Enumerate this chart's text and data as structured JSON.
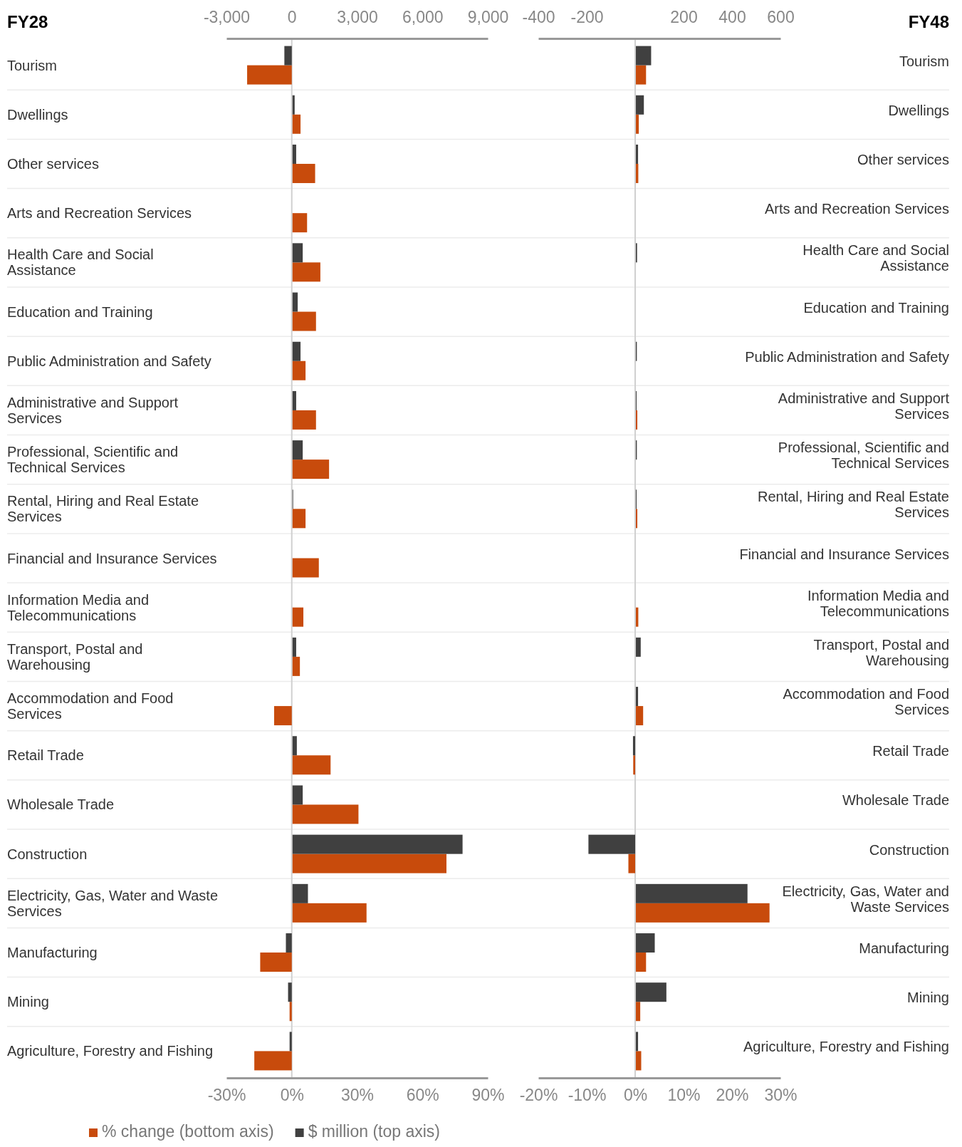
{
  "chart_data": [
    {
      "type": "bar",
      "orientation": "horizontal",
      "title": "FY28",
      "legend": "bottom",
      "categories": [
        "Tourism",
        "Dwellings",
        "Other services",
        "Arts and Recreation Services",
        "Health Care and Social Assistance",
        "Education and Training",
        "Public Administration and Safety",
        "Administrative and Support Services",
        "Professional, Scientific and Technical Services",
        "Rental, Hiring and Real Estate Services",
        "Financial and Insurance Services",
        "Information Media and Telecommunications",
        "Transport, Postal and Warehousing",
        "Accommodation and Food Services",
        "Retail Trade",
        "Wholesale Trade",
        "Construction",
        "Electricity, Gas, Water and Waste Services",
        "Manufacturing",
        "Mining",
        "Agriculture, Forestry and Fishing"
      ],
      "xlim": [
        -30,
        90
      ],
      "xticks": [
        {
          "value": -30,
          "label": "-30%"
        },
        {
          "value": 0,
          "label": "0%"
        },
        {
          "value": 30,
          "label": "30%"
        },
        {
          "value": 60,
          "label": "60%"
        },
        {
          "value": 90,
          "label": "90%"
        }
      ],
      "x2lim": [
        -3000,
        9000
      ],
      "x2ticks": [
        {
          "value": -3000,
          "label": "-3,000"
        },
        0,
        {
          "value": 3000,
          "label": "3,000"
        },
        {
          "value": 6000,
          "label": "6,000"
        },
        {
          "value": 9000,
          "label": "9,000"
        }
      ],
      "series": [
        {
          "name": "% change (bottom axis)",
          "color": "#c84b0c",
          "values": [
            -20.5,
            3.7,
            10.4,
            6.7,
            12.8,
            10.8,
            6,
            10.8,
            16.8,
            6,
            12.1,
            5,
            3.4,
            -8.1,
            17.5,
            30.3,
            70.7,
            34,
            -14.5,
            -1,
            -17.2
          ]
        },
        {
          "name": "$ million (top axis)",
          "color": "#404040",
          "axis": "x2",
          "values": [
            -340,
            100,
            170,
            0,
            470,
            240,
            370,
            170,
            470,
            30,
            0,
            0,
            170,
            0,
            200,
            470,
            7810,
            710,
            -270,
            -170,
            -100
          ]
        }
      ]
    },
    {
      "type": "bar",
      "orientation": "horizontal",
      "title": "FY48",
      "legend": false,
      "categories": [
        "Tourism",
        "Dwellings",
        "Other services",
        "Arts and Recreation Services",
        "Health Care and Social Assistance",
        "Education and Training",
        "Public Administration and Safety",
        "Administrative and Support Services",
        "Professional, Scientific and Technical Services",
        "Rental, Hiring and Real Estate Services",
        "Financial and Insurance Services",
        "Information Media and Telecommunications",
        "Transport, Postal and Warehousing",
        "Accommodation and Food Services",
        "Retail Trade",
        "Wholesale Trade",
        "Construction",
        "Electricity, Gas, Water and Waste Services",
        "Manufacturing",
        "Mining",
        "Agriculture, Forestry and Fishing"
      ],
      "xlim": [
        -20,
        30
      ],
      "xticks": [
        {
          "value": -20,
          "label": "-20%"
        },
        {
          "value": -10,
          "label": "-10%"
        },
        {
          "value": 0,
          "label": "0%"
        },
        {
          "value": 10,
          "label": "10%"
        },
        {
          "value": 20,
          "label": "20%"
        },
        {
          "value": 30,
          "label": "30%"
        }
      ],
      "x2lim": [
        -400,
        600
      ],
      "x2ticks": [
        -400,
        -200,
        200,
        400,
        600
      ],
      "series": [
        {
          "color": "#c84b0c",
          "values": [
            2.1,
            0.6,
            0.5,
            0,
            0,
            0,
            0,
            0.3,
            0,
            0.3,
            0,
            0.5,
            0,
            1.5,
            -0.4,
            0,
            -1.4,
            27.6,
            2.1,
            0.9,
            1.1
          ]
        },
        {
          "color": "#404040",
          "axis": "x2",
          "values": [
            63,
            33,
            9,
            0,
            5,
            0,
            4,
            3,
            4,
            3,
            0,
            0,
            20,
            9,
            -9,
            0,
            -193,
            461,
            78,
            126,
            9
          ]
        }
      ]
    }
  ]
}
